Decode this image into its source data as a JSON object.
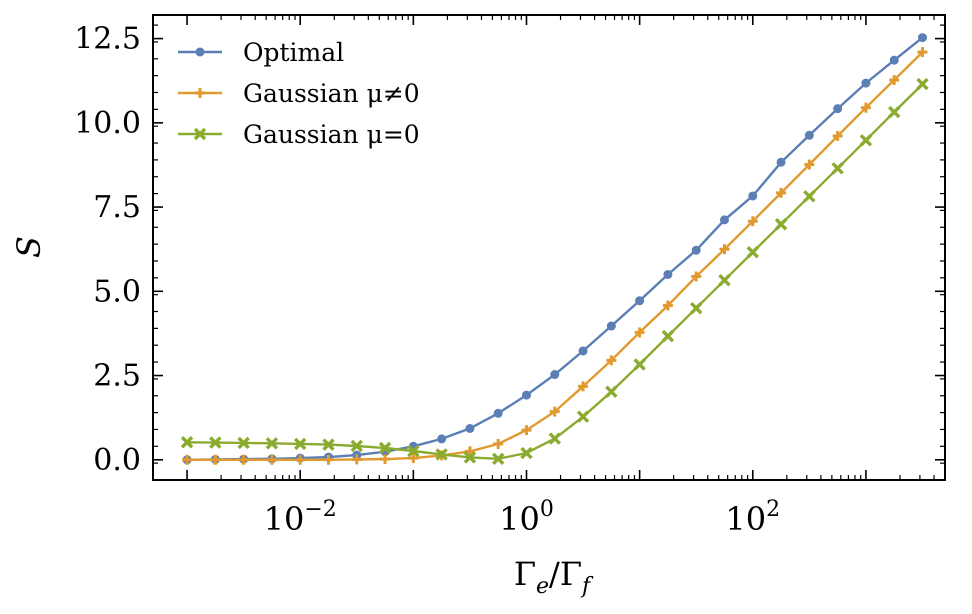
{
  "chart_data": {
    "type": "line",
    "xscale": "log",
    "xlim": [
      0.0005,
      5000
    ],
    "ylim": [
      -0.6,
      13.2
    ],
    "ylabel": "S",
    "xlabel": "Γe/Γf",
    "xticks": [
      {
        "value": 0.01,
        "base": "10",
        "exp": "−2"
      },
      {
        "value": 1,
        "base": "10",
        "exp": "0"
      },
      {
        "value": 100,
        "base": "10",
        "exp": "2"
      }
    ],
    "yticks": [
      {
        "value": 0.0,
        "label": "0.0"
      },
      {
        "value": 2.5,
        "label": "2.5"
      },
      {
        "value": 5.0,
        "label": "5.0"
      },
      {
        "value": 7.5,
        "label": "7.5"
      },
      {
        "value": 10.0,
        "label": "10.0"
      },
      {
        "value": 12.5,
        "label": "12.5"
      }
    ],
    "legend_position": "top-left",
    "x": [
      0.001,
      0.001778,
      0.003162,
      0.005623,
      0.01,
      0.01778,
      0.03162,
      0.05623,
      0.1,
      0.1778,
      0.3162,
      0.5623,
      1,
      1.778,
      3.162,
      5.623,
      10,
      17.78,
      31.62,
      56.23,
      100,
      177.8,
      316.2,
      562.3,
      1000,
      1778,
      3162
    ],
    "series": [
      {
        "name": "Optimal",
        "color": "#5b7fb5",
        "marker": "circle",
        "values": [
          0.0,
          0.01,
          0.02,
          0.03,
          0.05,
          0.08,
          0.14,
          0.24,
          0.4,
          0.62,
          0.93,
          1.38,
          1.92,
          2.53,
          3.23,
          3.97,
          4.72,
          5.5,
          6.22,
          7.12,
          7.83,
          8.83,
          9.63,
          10.42,
          11.18,
          11.86,
          12.53
        ]
      },
      {
        "name": "Gaussian μ≠0",
        "color": "#e19a2f",
        "marker": "plus",
        "values": [
          0.0,
          0.0,
          0.0,
          0.0,
          0.0,
          0.0,
          0.01,
          0.02,
          0.05,
          0.13,
          0.25,
          0.47,
          0.88,
          1.43,
          2.18,
          2.95,
          3.78,
          4.58,
          5.44,
          6.25,
          7.08,
          7.92,
          8.76,
          9.61,
          10.45,
          11.27,
          12.1
        ]
      },
      {
        "name": "Gaussian μ=0",
        "color": "#8aab2f",
        "marker": "x",
        "values": [
          0.52,
          0.51,
          0.5,
          0.49,
          0.47,
          0.45,
          0.41,
          0.35,
          0.26,
          0.16,
          0.07,
          0.03,
          0.2,
          0.63,
          1.28,
          2.02,
          2.83,
          3.67,
          4.5,
          5.33,
          6.16,
          6.99,
          7.82,
          8.65,
          9.48,
          10.32,
          11.15
        ]
      }
    ]
  }
}
